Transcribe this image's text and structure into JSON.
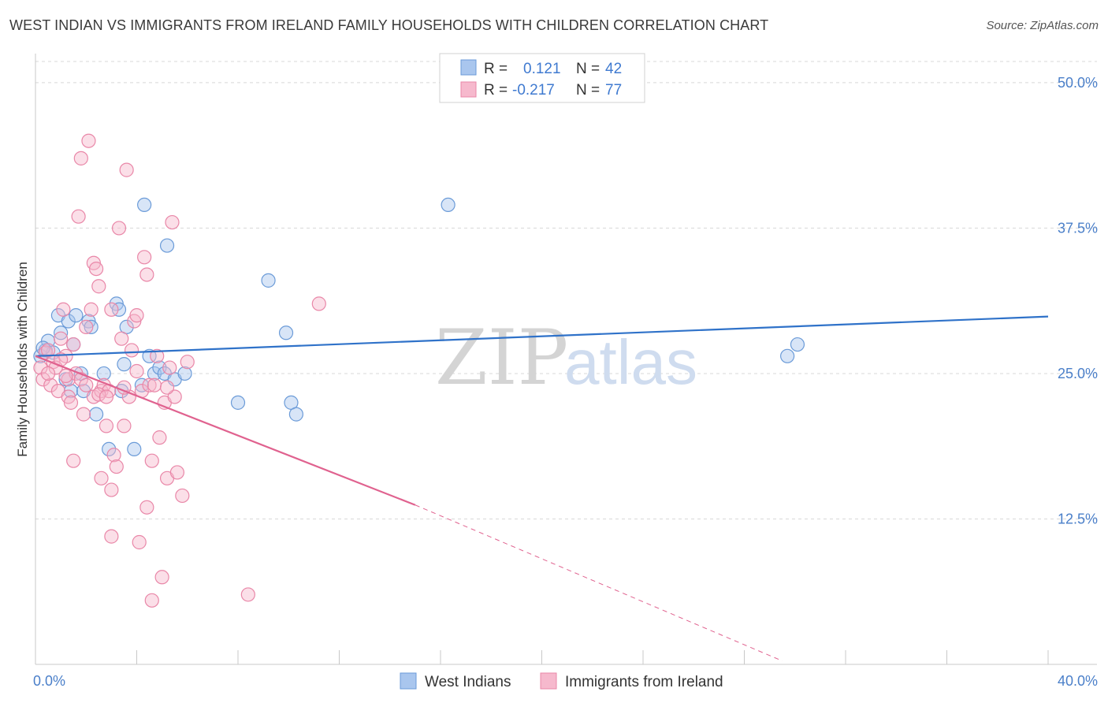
{
  "title": "WEST INDIAN VS IMMIGRANTS FROM IRELAND FAMILY HOUSEHOLDS WITH CHILDREN CORRELATION CHART",
  "source": "Source: ZipAtlas.com",
  "watermark": {
    "zip": "ZIP",
    "atlas": "atlas"
  },
  "colors": {
    "blue_fill": "#a9c6ee",
    "blue_stroke": "#6b9bd8",
    "blue_line": "#2f72c9",
    "pink_fill": "#f6b9cd",
    "pink_stroke": "#e987a8",
    "pink_line": "#e0628f",
    "grid": "#d8d8d8",
    "axis_text": "#4a7fc9"
  },
  "legend": {
    "rows": [
      {
        "r_label": "R =",
        "r_value": "0.121",
        "n_label": "N =",
        "n_value": "42"
      },
      {
        "r_label": "R =",
        "r_value": "-0.217",
        "n_label": "N =",
        "n_value": "77"
      }
    ]
  },
  "chart_data": {
    "type": "scatter",
    "xlabel": "",
    "ylabel": "Family Households with Children",
    "xlim": [
      0,
      40
    ],
    "ylim": [
      0,
      52.5
    ],
    "x_tick_labels": [
      "0.0%",
      "40.0%"
    ],
    "y_ticks": [
      12.5,
      25.0,
      37.5,
      50.0
    ],
    "y_tick_labels": [
      "12.5%",
      "25.0%",
      "37.5%",
      "50.0%"
    ],
    "grid": true,
    "series": [
      {
        "name": "West Indians",
        "color": "blue",
        "points": [
          [
            0.2,
            26.5
          ],
          [
            0.4,
            27.0
          ],
          [
            0.5,
            27.8
          ],
          [
            0.7,
            26.8
          ],
          [
            0.9,
            30.0
          ],
          [
            1.0,
            28.5
          ],
          [
            1.2,
            24.5
          ],
          [
            1.3,
            29.5
          ],
          [
            1.4,
            23.5
          ],
          [
            1.5,
            27.5
          ],
          [
            1.6,
            30.0
          ],
          [
            1.8,
            25.0
          ],
          [
            1.9,
            23.5
          ],
          [
            2.1,
            29.5
          ],
          [
            2.2,
            29.0
          ],
          [
            2.4,
            21.5
          ],
          [
            2.7,
            25.0
          ],
          [
            2.9,
            18.5
          ],
          [
            3.2,
            31.0
          ],
          [
            3.3,
            30.5
          ],
          [
            3.4,
            23.5
          ],
          [
            3.6,
            29.0
          ],
          [
            3.9,
            18.5
          ],
          [
            4.2,
            24.0
          ],
          [
            4.3,
            39.5
          ],
          [
            4.5,
            26.5
          ],
          [
            4.7,
            25.0
          ],
          [
            4.9,
            25.5
          ],
          [
            5.1,
            25.0
          ],
          [
            5.2,
            36.0
          ],
          [
            5.5,
            24.5
          ],
          [
            5.9,
            25.0
          ],
          [
            8.0,
            22.5
          ],
          [
            9.2,
            33.0
          ],
          [
            9.9,
            28.5
          ],
          [
            10.1,
            22.5
          ],
          [
            10.3,
            21.5
          ],
          [
            16.3,
            39.5
          ],
          [
            29.7,
            26.5
          ],
          [
            30.1,
            27.5
          ],
          [
            0.3,
            27.2
          ],
          [
            3.5,
            25.8
          ]
        ]
      },
      {
        "name": "Immigrants from Ireland",
        "color": "pink",
        "points": [
          [
            0.2,
            25.5
          ],
          [
            0.3,
            24.5
          ],
          [
            0.4,
            26.8
          ],
          [
            0.5,
            27.0
          ],
          [
            0.6,
            24.0
          ],
          [
            0.7,
            26.0
          ],
          [
            0.8,
            25.5
          ],
          [
            0.9,
            23.5
          ],
          [
            1.0,
            28.0
          ],
          [
            1.1,
            30.5
          ],
          [
            1.2,
            26.5
          ],
          [
            1.3,
            23.0
          ],
          [
            1.3,
            24.5
          ],
          [
            1.4,
            22.5
          ],
          [
            1.5,
            27.5
          ],
          [
            1.5,
            17.5
          ],
          [
            1.6,
            25.0
          ],
          [
            1.7,
            38.5
          ],
          [
            1.8,
            24.5
          ],
          [
            1.8,
            43.5
          ],
          [
            1.9,
            21.5
          ],
          [
            2.0,
            29.0
          ],
          [
            2.0,
            24.0
          ],
          [
            2.1,
            45.0
          ],
          [
            2.2,
            30.5
          ],
          [
            2.3,
            34.5
          ],
          [
            2.3,
            23.0
          ],
          [
            2.4,
            34.0
          ],
          [
            2.5,
            32.5
          ],
          [
            2.6,
            16.0
          ],
          [
            2.6,
            23.5
          ],
          [
            2.7,
            24.0
          ],
          [
            2.8,
            20.5
          ],
          [
            2.9,
            23.5
          ],
          [
            3.0,
            30.5
          ],
          [
            3.0,
            15.0
          ],
          [
            3.0,
            11.0
          ],
          [
            3.1,
            18.0
          ],
          [
            3.2,
            17.0
          ],
          [
            3.3,
            37.5
          ],
          [
            3.4,
            28.0
          ],
          [
            3.5,
            20.5
          ],
          [
            3.6,
            42.5
          ],
          [
            3.7,
            23.0
          ],
          [
            3.8,
            27.0
          ],
          [
            3.9,
            29.5
          ],
          [
            4.0,
            30.0
          ],
          [
            4.1,
            10.5
          ],
          [
            4.2,
            23.5
          ],
          [
            4.3,
            35.0
          ],
          [
            4.4,
            33.5
          ],
          [
            4.4,
            13.5
          ],
          [
            4.5,
            24.0
          ],
          [
            4.6,
            5.5
          ],
          [
            4.6,
            17.5
          ],
          [
            4.7,
            24.0
          ],
          [
            4.8,
            26.5
          ],
          [
            4.9,
            19.5
          ],
          [
            5.0,
            7.5
          ],
          [
            5.1,
            22.5
          ],
          [
            5.2,
            16.0
          ],
          [
            5.3,
            25.5
          ],
          [
            5.4,
            38.0
          ],
          [
            5.5,
            23.0
          ],
          [
            5.6,
            16.5
          ],
          [
            5.8,
            14.5
          ],
          [
            6.0,
            26.0
          ],
          [
            8.4,
            6.0
          ],
          [
            11.2,
            31.0
          ],
          [
            0.5,
            25.0
          ],
          [
            1.0,
            26.2
          ],
          [
            2.5,
            23.2
          ],
          [
            3.5,
            23.8
          ],
          [
            4.0,
            25.2
          ],
          [
            1.2,
            24.8
          ],
          [
            2.8,
            23.0
          ],
          [
            5.2,
            23.8
          ]
        ]
      }
    ],
    "trendlines": [
      {
        "series": "West Indians",
        "x": [
          0,
          40
        ],
        "y": [
          26.5,
          29.9
        ],
        "style": "solid"
      },
      {
        "series": "Immigrants from Ireland",
        "x": [
          0,
          15
        ],
        "y": [
          26.5,
          13.7
        ],
        "style": "solid"
      },
      {
        "series": "Immigrants from Ireland",
        "x": [
          15,
          29.5
        ],
        "y": [
          13.7,
          0.3
        ],
        "style": "dashed"
      }
    ],
    "legend_position": "top-center"
  }
}
